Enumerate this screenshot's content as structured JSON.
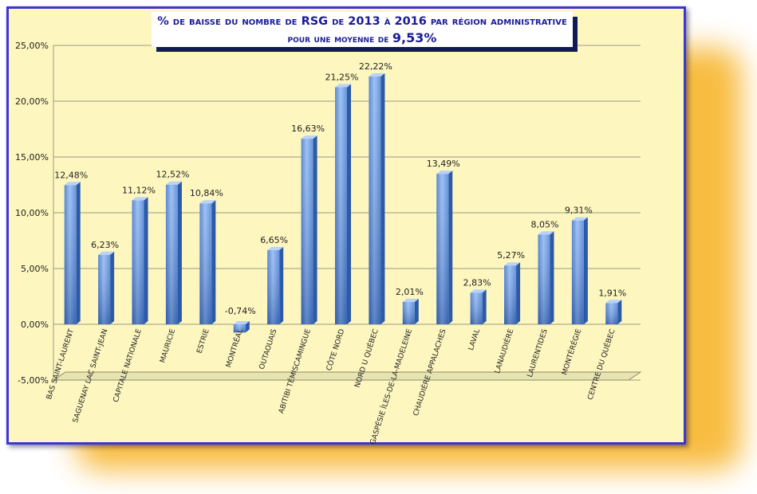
{
  "title": {
    "line1": "% de baisse du nombre de RSG de 2013 à 2016 par région administrative",
    "line2_prefix": "pour une moyenne de",
    "line2_value": "9,53%"
  },
  "chart_data": {
    "type": "bar",
    "title": "% de baisse du nombre de RSG de 2013 à 2016 par région administrative pour une moyenne de 9,53%",
    "xlabel": "",
    "ylabel": "",
    "ylim": [
      -5,
      25
    ],
    "yticks": [
      25,
      20,
      15,
      10,
      5,
      0,
      -5
    ],
    "ytick_labels": [
      "25,00%",
      "20,00%",
      "15,00%",
      "10,00%",
      "5,00%",
      "0,00%",
      "-5,00%"
    ],
    "grid": true,
    "legend": "none",
    "bar_color": "#5b8fdc",
    "categories": [
      "BAS SAINT-LAURENT",
      "SAGUENAY LAC SAINT-JEAN",
      "CAPITALE NATIONALE",
      "MAURICIE",
      "ESTRIE",
      "MONTRÉAL",
      "OUTAOUAIS",
      "ABITIBI TÉMISCAMINGUE",
      "CÔTE NORD",
      "NORD U QUÉBEC",
      "GASPÉSIE ÎLES-DE-LA-MADELEINE",
      "CHAUDIÈRE APPALACHES",
      "LAVAL",
      "LANAUDIÈRE",
      "LAURENTIDES",
      "MONTÉRÉGIE",
      "CENTRE DU QUÉBEC"
    ],
    "values": [
      12.48,
      6.23,
      11.12,
      12.52,
      10.84,
      -0.74,
      6.65,
      16.63,
      21.25,
      22.22,
      2.01,
      13.49,
      2.83,
      5.27,
      8.05,
      9.31,
      1.91
    ],
    "data_labels": [
      "12,48%",
      "6,23%",
      "11,12%",
      "12,52%",
      "10,84%",
      "-0,74%",
      "6,65%",
      "16,63%",
      "21,25%",
      "22,22%",
      "2,01%",
      "13,49%",
      "2,83%",
      "5,27%",
      "8,05%",
      "9,31%",
      "1,91%"
    ]
  }
}
